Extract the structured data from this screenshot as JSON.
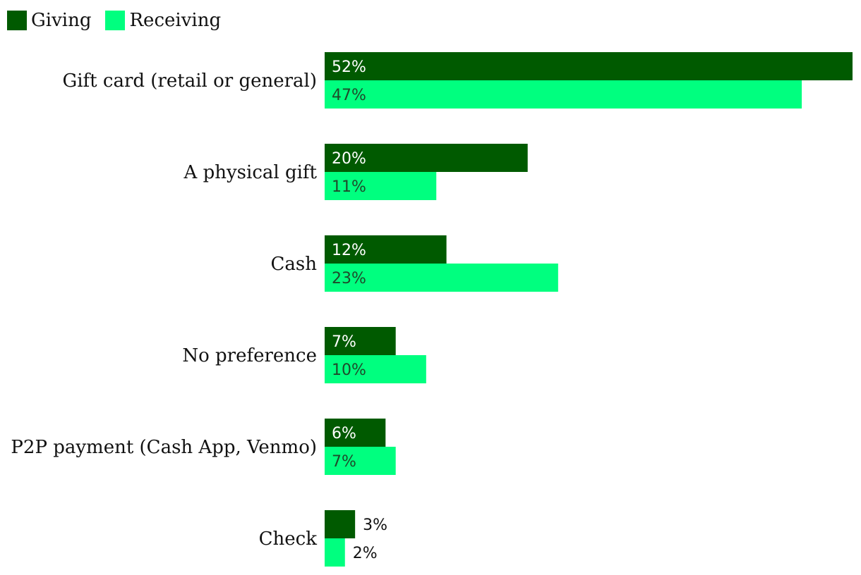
{
  "chart_data": {
    "type": "bar",
    "orientation": "horizontal",
    "categories": [
      "Gift card (retail or general)",
      "A physical gift",
      "Cash",
      "No preference",
      "P2P payment (Cash App, Venmo)",
      "Check"
    ],
    "series": [
      {
        "name": "Giving",
        "color": "#005a00",
        "values": [
          52,
          20,
          12,
          7,
          6,
          3
        ],
        "labels": [
          "52%",
          "20%",
          "12%",
          "7%",
          "6%",
          "3%"
        ]
      },
      {
        "name": "Receiving",
        "color": "#00ff7f",
        "values": [
          47,
          11,
          23,
          10,
          7,
          2
        ],
        "labels": [
          "47%",
          "11%",
          "23%",
          "10%",
          "7%",
          "2%"
        ]
      }
    ],
    "xlim": [
      0,
      52
    ],
    "unit": "%",
    "legend_position": "top-left",
    "grid": false
  }
}
